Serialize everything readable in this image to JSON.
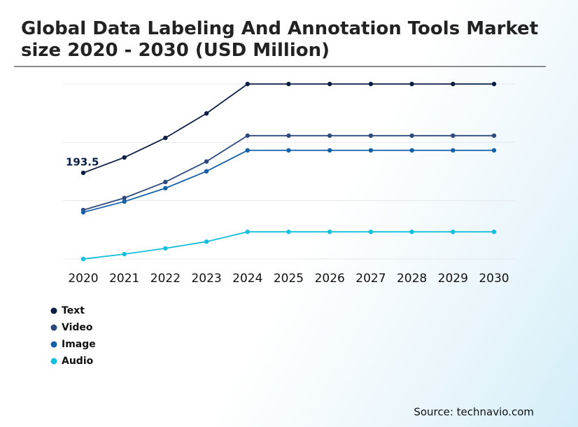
{
  "chart_data": {
    "type": "line",
    "title": "Global Data Labeling And Annotation Tools Market size 2020 - 2030 (USD Million)",
    "source": "Source: technavio.com",
    "categories": [
      "2020",
      "2021",
      "2022",
      "2023",
      "2024",
      "2025",
      "2026",
      "2027",
      "2028",
      "2029",
      "2030"
    ],
    "series": [
      {
        "name": "Text",
        "color": "#0b1f45",
        "values": [
          193.5,
          228,
          272,
          327,
          393,
          393,
          393,
          393,
          393,
          393,
          393
        ],
        "labeled_points": [
          0
        ]
      },
      {
        "name": "Video",
        "color": "#2e4a7d",
        "values": [
          110,
          137,
          173,
          219,
          277,
          277,
          277,
          277,
          277,
          277,
          277
        ]
      },
      {
        "name": "Image",
        "color": "#1560a8",
        "values": [
          105,
          129,
          159,
          197,
          244,
          244,
          244,
          244,
          244,
          244,
          244
        ]
      },
      {
        "name": "Audio",
        "color": "#14bfdc",
        "values": [
          0,
          11,
          24,
          39,
          61,
          61,
          61,
          61,
          61,
          61,
          61
        ]
      }
    ],
    "ylim": [
      0,
      393
    ],
    "yticks": [
      0,
      131,
      262,
      393
    ],
    "grid": true
  }
}
